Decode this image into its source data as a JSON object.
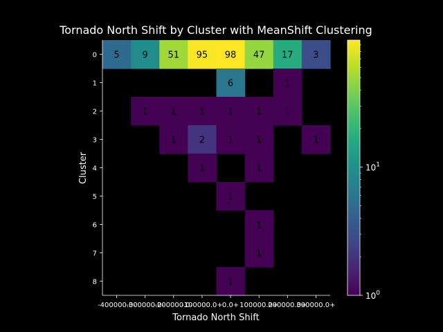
{
  "chart_data": {
    "type": "heatmap",
    "title": "Tornado North Shift by Cluster with MeanShift Clustering",
    "xlabel": "Tornado North Shift",
    "ylabel": "Cluster",
    "x_tick_labels": [
      "-400000.0",
      "-300000.0",
      "-200000.0",
      "-100000.0",
      "0.0",
      "100000.0",
      "200000.0",
      "300000.0+"
    ],
    "x_tick_labels_drawn": [
      "-400000.0-",
      "-300000.0-",
      "-200000.0-",
      "-100000.0+",
      "0.0+",
      "100000.0+",
      "200000.0+",
      "300000.0+"
    ],
    "y_tick_labels": [
      "0",
      "1",
      "2",
      "3",
      "4",
      "5",
      "6",
      "7",
      "8"
    ],
    "values": [
      [
        5,
        9,
        51,
        95,
        98,
        47,
        17,
        3
      ],
      [
        0,
        0,
        0,
        0,
        6,
        0,
        1,
        0
      ],
      [
        0,
        1,
        1,
        1,
        1,
        1,
        1,
        0
      ],
      [
        0,
        0,
        1,
        2,
        1,
        1,
        0,
        1
      ],
      [
        0,
        0,
        0,
        1,
        0,
        1,
        0,
        0
      ],
      [
        0,
        0,
        0,
        0,
        1,
        0,
        0,
        0
      ],
      [
        0,
        0,
        0,
        0,
        0,
        1,
        0,
        0
      ],
      [
        0,
        0,
        0,
        0,
        0,
        1,
        0,
        0
      ],
      [
        0,
        0,
        0,
        0,
        1,
        0,
        0,
        0
      ]
    ],
    "colormap": "viridis",
    "color_scale": "log",
    "colorbar": {
      "range": [
        1,
        98
      ],
      "tick_labels": [
        "10^0",
        "10^1"
      ]
    },
    "grid": false
  }
}
